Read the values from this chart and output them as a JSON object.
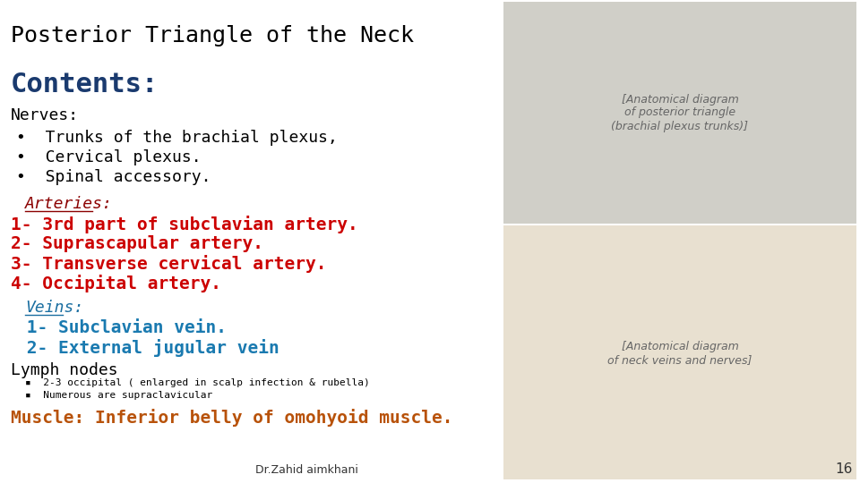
{
  "title": "Posterior Triangle of the Neck",
  "title_color": "#000000",
  "title_fontsize": 18,
  "bg_color": "#ffffff",
  "contents_label": "Contents:",
  "contents_color": "#1a3a6e",
  "contents_fontsize": 22,
  "nerves_label": "Nerves:",
  "nerves_color": "#000000",
  "nerves_fontsize": 13,
  "nerve_items": [
    "Trunks of the brachial plexus,",
    "Cervical plexus.",
    "Spinal accessory."
  ],
  "nerve_color": "#000000",
  "nerve_fontsize": 13,
  "arteries_label": "Arteries:",
  "arteries_color": "#8B0000",
  "arteries_fontsize": 13,
  "artery_items": [
    "1- 3rd part of subclavian artery.",
    "2- Suprascapular artery.",
    "3- Transverse cervical artery.",
    "4- Occipital artery."
  ],
  "artery_color": "#cc0000",
  "artery_fontsize": 14,
  "veins_label": "Veins:",
  "veins_color": "#1a6ea0",
  "veins_fontsize": 13,
  "vein_items": [
    "1- Subclavian vein.",
    "2- External jugular vein"
  ],
  "vein_color": "#1a7ab0",
  "vein_fontsize": 14,
  "lymph_label": "Lymph nodes",
  "lymph_color": "#000000",
  "lymph_fontsize": 13,
  "lymph_items": [
    "2-3 occipital ( enlarged in scalp infection & rubella)",
    "Numerous are supraclavicular"
  ],
  "lymph_item_color": "#000000",
  "lymph_item_fontsize": 8,
  "muscle_label": "Muscle: Inferior belly of omohyoid muscle.",
  "muscle_color": "#b8520a",
  "muscle_fontsize": 14,
  "author": "Dr.Zahid aimkhani",
  "author_fontsize": 9,
  "page_num": "16",
  "page_fontsize": 11,
  "top_img_color": "#d0cfc8",
  "bot_img_color": "#e8e0d0"
}
